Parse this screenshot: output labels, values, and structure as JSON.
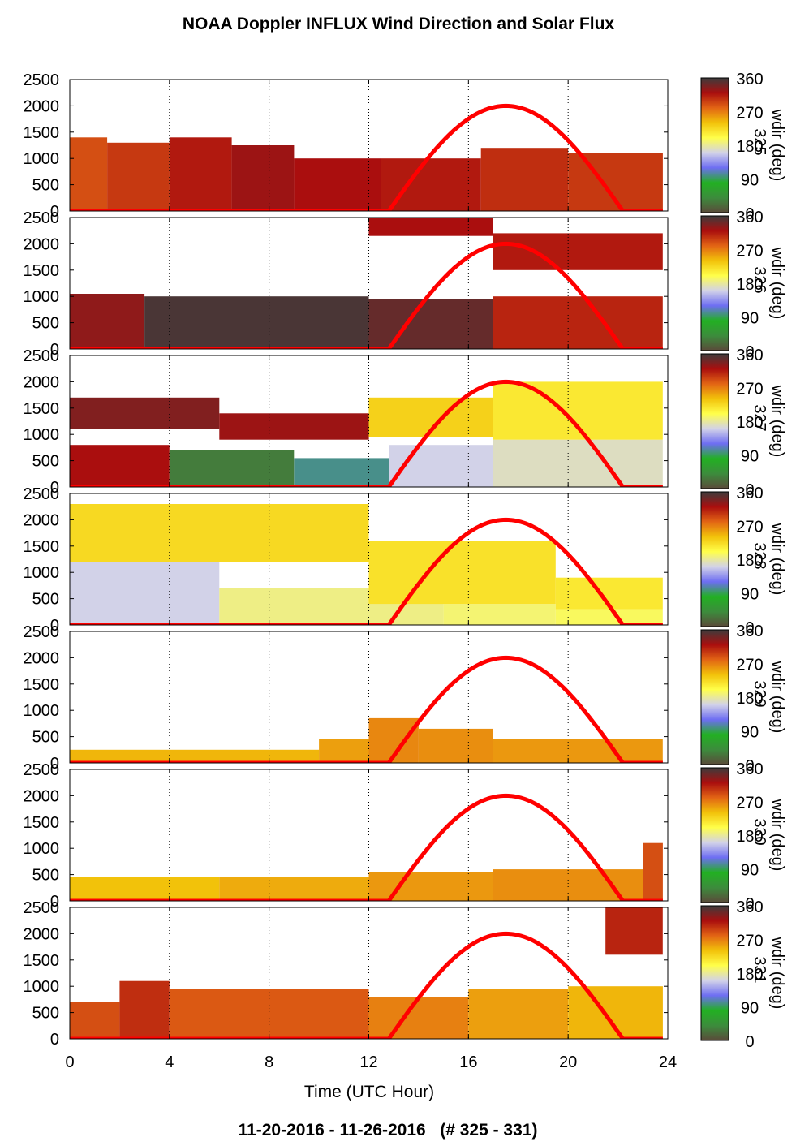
{
  "title": "NOAA Doppler INFLUX Wind Direction and Solar Flux",
  "footer": "11-20-2016 - 11-26-2016   (# 325 - 331)",
  "colors": {
    "solar_flux_line": "#ff0000",
    "missing_data": "#ffffff",
    "colormap": [
      "#5a4a3a",
      "#3c8c3c",
      "#22b022",
      "#6e6ef2",
      "#d2d2e8",
      "#ffff4a",
      "#f2c20a",
      "#e26414",
      "#aa0e0e",
      "#3c3c3c"
    ]
  },
  "chart_data": {
    "type": "heatmap",
    "xlabel": "Time (UTC Hour)",
    "xlim": [
      0,
      24
    ],
    "xticks": [
      "0",
      "4",
      "8",
      "12",
      "16",
      "20",
      "24"
    ],
    "ylim": [
      0,
      2500
    ],
    "yticks": [
      "0",
      "500",
      "1000",
      "1500",
      "2000",
      "2500"
    ],
    "grid": "vertical dotted at x ticks",
    "colorbar": {
      "label": "wdir (deg)",
      "range": [
        0,
        360
      ],
      "ticks": [
        "0",
        "90",
        "180",
        "270",
        "360"
      ]
    },
    "solar_flux_curve": {
      "peak_hour": 17.5,
      "peak_height": 2000,
      "start_hour": 12.8,
      "end_hour": 22.2
    },
    "panels": [
      {
        "day": "325",
        "segments": [
          {
            "x0": 0,
            "x1": 1.5,
            "top": 1400,
            "wdir": 290
          },
          {
            "x0": 1.5,
            "x1": 4,
            "top": 1300,
            "wdir": 300
          },
          {
            "x0": 4,
            "x1": 6.5,
            "top": 1400,
            "wdir": 315
          },
          {
            "x0": 6.5,
            "x1": 9,
            "top": 1250,
            "wdir": 325
          },
          {
            "x0": 9,
            "x1": 12.5,
            "top": 1000,
            "wdir": 320
          },
          {
            "x0": 12.5,
            "x1": 16.5,
            "top": 1000,
            "wdir": 315
          },
          {
            "x0": 16.5,
            "x1": 20,
            "top": 1200,
            "wdir": 305
          },
          {
            "x0": 20,
            "x1": 23.8,
            "top": 1100,
            "wdir": 300
          }
        ]
      },
      {
        "day": "326",
        "segments": [
          {
            "x0": 0,
            "x1": 3,
            "top": 1050,
            "wdir": 330
          },
          {
            "x0": 3,
            "x1": 12,
            "top": 1000,
            "wdir": 355
          },
          {
            "x0": 12,
            "x1": 17,
            "top": 950,
            "wdir": 345
          },
          {
            "x0": 17,
            "x1": 23.8,
            "top": 1000,
            "wdir": 310
          },
          {
            "x0": 12,
            "x1": 17,
            "bottom": 2150,
            "top": 2500,
            "wdir": 320
          },
          {
            "x0": 17,
            "x1": 23.8,
            "bottom": 1500,
            "top": 2200,
            "wdir": 315
          }
        ]
      },
      {
        "day": "327",
        "segments": [
          {
            "x0": 0,
            "x1": 4,
            "top": 800,
            "wdir": 320
          },
          {
            "x0": 4,
            "x1": 9,
            "top": 700,
            "wdir": 30
          },
          {
            "x0": 9,
            "x1": 12.8,
            "top": 550,
            "wdir": 100
          },
          {
            "x0": 12.8,
            "x1": 17,
            "top": 800,
            "wdir": 160
          },
          {
            "x0": 17,
            "x1": 23.8,
            "top": 900,
            "wdir": 170
          },
          {
            "x0": 0,
            "x1": 6,
            "bottom": 1100,
            "top": 1700,
            "wdir": 335
          },
          {
            "x0": 6,
            "x1": 12,
            "bottom": 900,
            "top": 1400,
            "wdir": 325
          },
          {
            "x0": 12,
            "x1": 17,
            "bottom": 950,
            "top": 1700,
            "wdir": 230
          },
          {
            "x0": 17,
            "x1": 23.8,
            "bottom": 900,
            "top": 2000,
            "wdir": 215
          }
        ]
      },
      {
        "day": "328",
        "segments": [
          {
            "x0": 0,
            "x1": 6,
            "top": 1200,
            "wdir": 160
          },
          {
            "x0": 6,
            "x1": 12,
            "top": 700,
            "wdir": 185
          },
          {
            "x0": 12,
            "x1": 15,
            "top": 500,
            "wdir": 185
          },
          {
            "x0": 15,
            "x1": 19.5,
            "top": 400,
            "wdir": 190
          },
          {
            "x0": 19.5,
            "x1": 23.8,
            "top": 300,
            "wdir": 195
          },
          {
            "x0": 0,
            "x1": 12,
            "bottom": 1200,
            "top": 2300,
            "wdir": 225
          },
          {
            "x0": 12,
            "x1": 19.5,
            "bottom": 400,
            "top": 1600,
            "wdir": 220
          },
          {
            "x0": 19.5,
            "x1": 23.8,
            "bottom": 300,
            "top": 900,
            "wdir": 215
          }
        ]
      },
      {
        "day": "329",
        "segments": [
          {
            "x0": 0,
            "x1": 10,
            "top": 250,
            "wdir": 245
          },
          {
            "x0": 10,
            "x1": 12,
            "top": 450,
            "wdir": 255
          },
          {
            "x0": 12,
            "x1": 14,
            "top": 850,
            "wdir": 265
          },
          {
            "x0": 14,
            "x1": 17,
            "top": 650,
            "wdir": 262
          },
          {
            "x0": 17,
            "x1": 23.8,
            "top": 450,
            "wdir": 258
          }
        ]
      },
      {
        "day": "330",
        "segments": [
          {
            "x0": 0,
            "x1": 6,
            "top": 450,
            "wdir": 240
          },
          {
            "x0": 6,
            "x1": 12,
            "top": 450,
            "wdir": 250
          },
          {
            "x0": 12,
            "x1": 17,
            "top": 550,
            "wdir": 258
          },
          {
            "x0": 17,
            "x1": 23,
            "top": 600,
            "wdir": 262
          },
          {
            "x0": 23,
            "x1": 23.8,
            "top": 1100,
            "wdir": 290
          }
        ]
      },
      {
        "day": "331",
        "segments": [
          {
            "x0": 0,
            "x1": 2,
            "top": 700,
            "wdir": 290
          },
          {
            "x0": 2,
            "x1": 4,
            "top": 1100,
            "wdir": 305
          },
          {
            "x0": 4,
            "x1": 12,
            "top": 950,
            "wdir": 285
          },
          {
            "x0": 12,
            "x1": 16,
            "top": 800,
            "wdir": 268
          },
          {
            "x0": 16,
            "x1": 20,
            "top": 950,
            "wdir": 255
          },
          {
            "x0": 20,
            "x1": 23.8,
            "top": 1000,
            "wdir": 245
          },
          {
            "x0": 21.5,
            "x1": 23.8,
            "bottom": 1600,
            "top": 2500,
            "wdir": 310
          }
        ]
      }
    ]
  }
}
